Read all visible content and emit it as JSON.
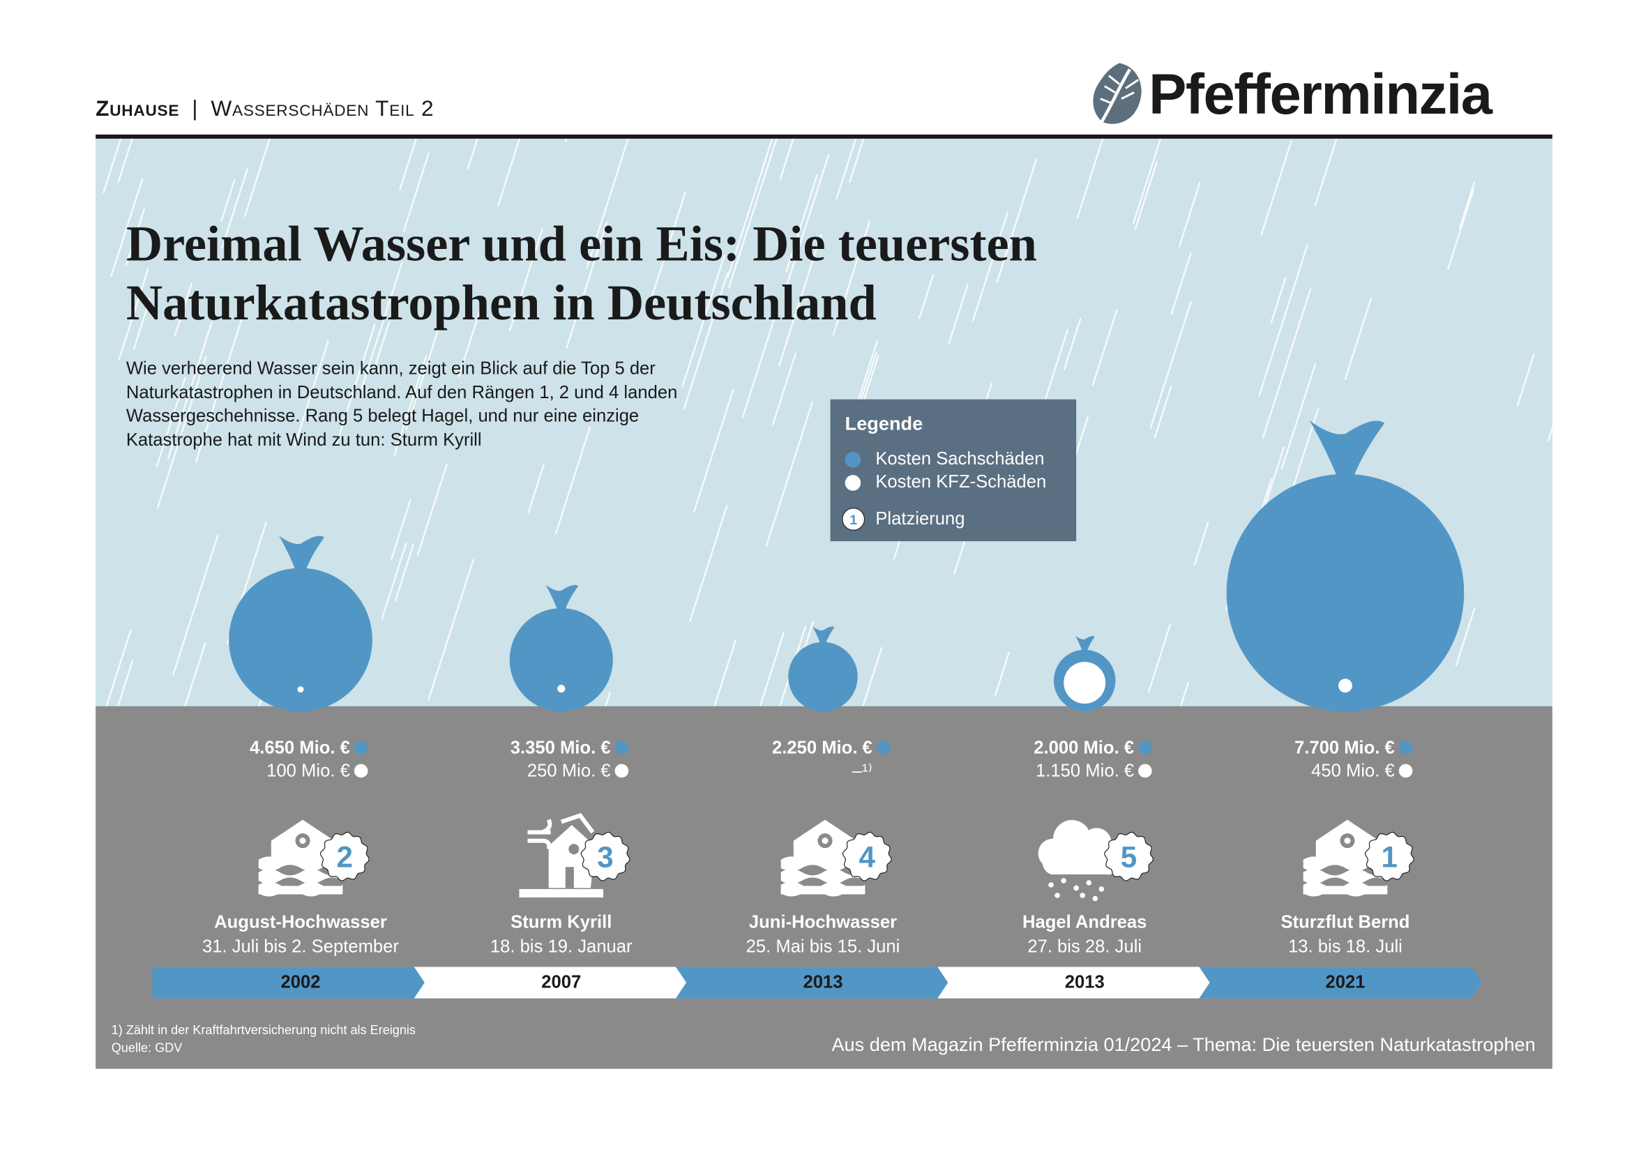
{
  "header": {
    "section": "Zuhause",
    "separator": "|",
    "topic": "Wasserschäden Teil 2",
    "logo_text": "Pfefferminzia"
  },
  "title": "Dreimal Wasser und ein Eis: Die teuersten Naturkatastrophen in Deutschland",
  "intro": "Wie verheerend Wasser sein kann, zeigt ein Blick auf die Top 5 der Naturkatastrophen in Deutschland. Auf den Rängen 1, 2 und 4 landen Wasser­geschehnisse. Rang 5 belegt Hagel, und nur eine einzige Katastrophe hat mit Wind zu tun: Sturm Kyrill",
  "legend": {
    "title": "Legende",
    "items": [
      "Kosten Sachschäden",
      "Kosten KFZ-Schäden",
      "Platzierung"
    ],
    "badge_example": "1"
  },
  "colors": {
    "sky": "#cde2e9",
    "ground": "#8a8a8a",
    "accent_blue": "#5296c5",
    "legend_bg": "#5b6f82",
    "white": "#ffffff"
  },
  "chart_data": {
    "type": "scatter",
    "title": "Dreimal Wasser und ein Eis: Die teuersten Naturkatastrophen in Deutschland",
    "encoding": "bubble radius proportional to cost",
    "unit": "Mio. €",
    "categories": [
      "August-Hochwasser",
      "Sturm Kyrill",
      "Juni-Hochwasser",
      "Hagel Andreas",
      "Sturzflut Bernd"
    ],
    "series": [
      {
        "name": "Kosten Sachschäden",
        "values": [
          4650,
          3350,
          2250,
          2000,
          7700
        ],
        "color": "#5296c5"
      },
      {
        "name": "Kosten KFZ-Schäden",
        "values": [
          100,
          250,
          null,
          1150,
          450
        ],
        "color": "#ffffff"
      }
    ],
    "events": [
      {
        "name": "August-Hochwasser",
        "dates": "31. Juli bis 2. September",
        "year": "2002",
        "rank": "2",
        "icon": "house-flood-icon",
        "sach_label": "4.650 Mio. €",
        "kfz_label": "100 Mio. €"
      },
      {
        "name": "Sturm Kyrill",
        "dates": "18. bis 19. Januar",
        "year": "2007",
        "rank": "3",
        "icon": "house-storm-icon",
        "sach_label": "3.350 Mio. €",
        "kfz_label": "250 Mio. €"
      },
      {
        "name": "Juni-Hochwasser",
        "dates": "25. Mai bis 15. Juni",
        "year": "2013",
        "rank": "4",
        "icon": "house-flood-icon",
        "sach_label": "2.250 Mio. €",
        "kfz_label": "–¹⁾"
      },
      {
        "name": "Hagel Andreas",
        "dates": "27. bis 28. Juli",
        "year": "2013",
        "rank": "5",
        "icon": "hail-cloud-icon",
        "sach_label": "2.000 Mio. €",
        "kfz_label": "1.150 Mio. €"
      },
      {
        "name": "Sturzflut Bernd",
        "dates": "13. bis 18. Juli",
        "year": "2021",
        "rank": "1",
        "icon": "house-flood-icon",
        "sach_label": "7.700 Mio. €",
        "kfz_label": "450 Mio. €"
      }
    ],
    "legend_placement": "top-right"
  },
  "footnote": "1) Zählt in der Kraftfahrtversicherung nicht als Ereignis",
  "source": "Quelle: GDV",
  "credit": "Aus dem Magazin Pfefferminzia 01/2024 – Thema: Die teuersten Naturkatastrophen"
}
